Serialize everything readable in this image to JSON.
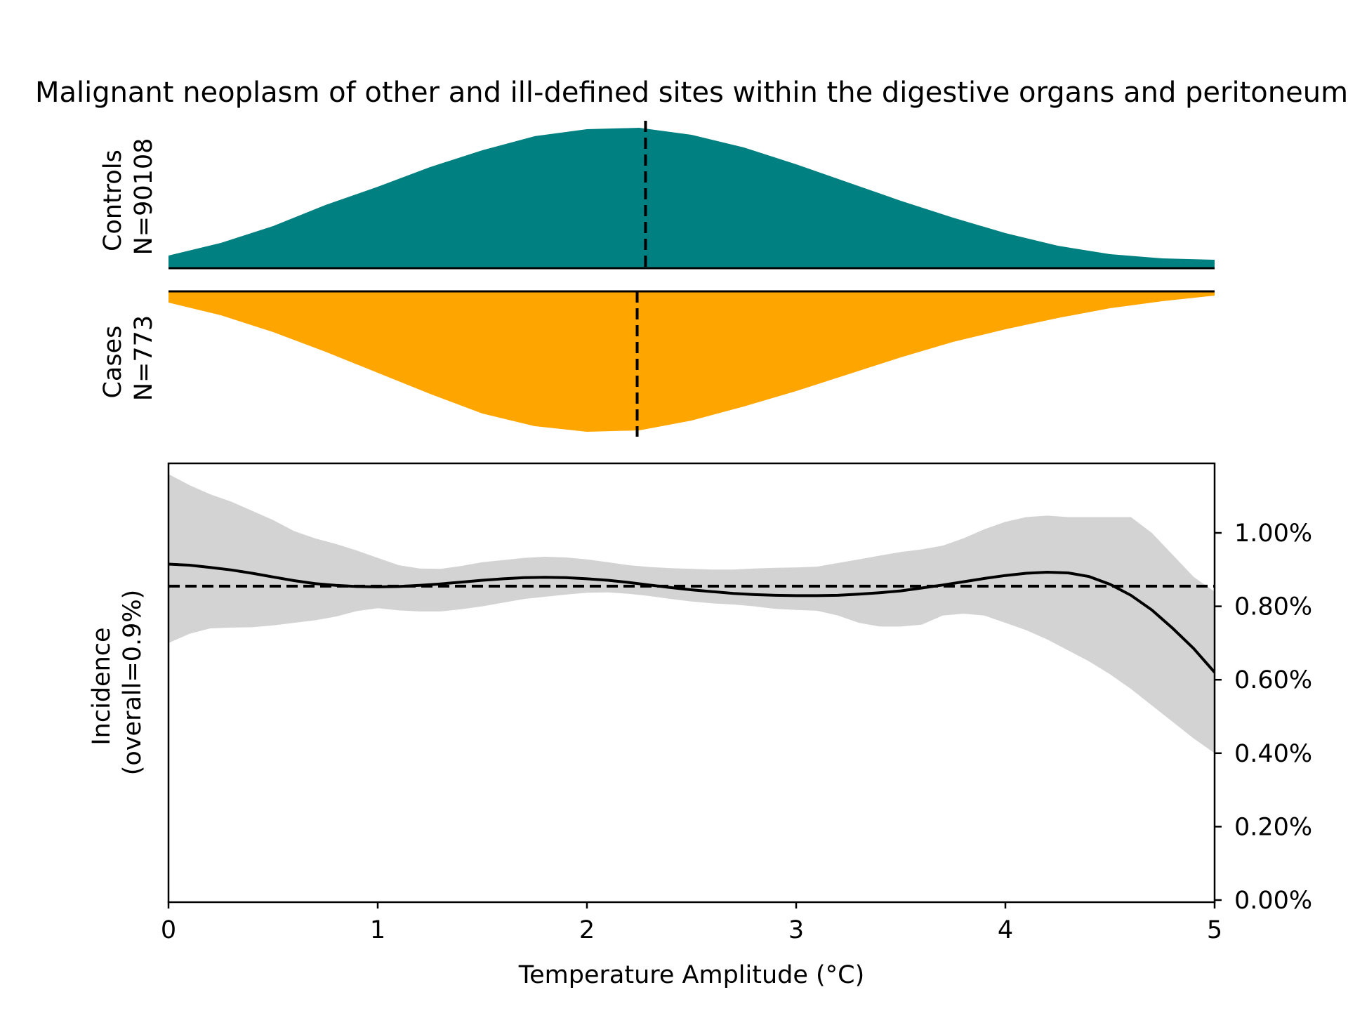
{
  "chart_data": {
    "type": "area",
    "title": "Malignant neoplasm of other and ill-defined sites within the digestive organs and peritoneum",
    "xlabel": "Temperature Amplitude (°C)",
    "xlim": [
      0,
      5
    ],
    "x_ticks": [
      "0",
      "1",
      "2",
      "3",
      "4",
      "5"
    ],
    "controls": {
      "label_line1": "Controls",
      "label_line2": "N=90108",
      "color": "#008080",
      "median": 2.28,
      "density_x": [
        0,
        0.25,
        0.5,
        0.75,
        1.0,
        1.25,
        1.5,
        1.75,
        2.0,
        2.25,
        2.5,
        2.75,
        3.0,
        3.25,
        3.5,
        3.75,
        4.0,
        4.25,
        4.5,
        4.75,
        5.0
      ],
      "density": [
        0.09,
        0.18,
        0.3,
        0.45,
        0.58,
        0.72,
        0.84,
        0.94,
        0.99,
        1.0,
        0.95,
        0.86,
        0.74,
        0.61,
        0.48,
        0.36,
        0.25,
        0.16,
        0.1,
        0.07,
        0.06
      ]
    },
    "cases": {
      "label_line1": "Cases",
      "label_line2": "N=773",
      "color": "#FFA500",
      "median": 2.24,
      "density_x": [
        0,
        0.25,
        0.5,
        0.75,
        1.0,
        1.25,
        1.5,
        1.75,
        2.0,
        2.25,
        2.5,
        2.75,
        3.0,
        3.25,
        3.5,
        3.75,
        4.0,
        4.25,
        4.5,
        4.75,
        5.0
      ],
      "density": [
        0.08,
        0.17,
        0.29,
        0.43,
        0.58,
        0.73,
        0.87,
        0.96,
        1.0,
        0.99,
        0.92,
        0.82,
        0.71,
        0.59,
        0.47,
        0.36,
        0.27,
        0.19,
        0.12,
        0.07,
        0.03
      ]
    },
    "incidence": {
      "ylabel_line1": "Incidence",
      "ylabel_line2": "(overall=0.9%)",
      "ylim": [
        0,
        1.2
      ],
      "y_ticks": [
        "0.00%",
        "0.20%",
        "0.40%",
        "0.60%",
        "0.80%",
        "1.00%"
      ],
      "overall": 0.855,
      "curve_color": "#000000",
      "band_color": "#d3d3d3",
      "x": [
        0,
        0.1,
        0.2,
        0.3,
        0.4,
        0.5,
        0.6,
        0.7,
        0.8,
        0.9,
        1.0,
        1.1,
        1.2,
        1.3,
        1.4,
        1.5,
        1.6,
        1.7,
        1.8,
        1.9,
        2.0,
        2.1,
        2.2,
        2.3,
        2.4,
        2.5,
        2.6,
        2.7,
        2.8,
        2.9,
        3.0,
        3.1,
        3.2,
        3.3,
        3.4,
        3.5,
        3.6,
        3.7,
        3.8,
        3.9,
        4.0,
        4.1,
        4.2,
        4.3,
        4.4,
        4.5,
        4.6,
        4.7,
        4.8,
        4.9,
        5.0
      ],
      "estimate": [
        0.915,
        0.912,
        0.906,
        0.899,
        0.89,
        0.88,
        0.87,
        0.862,
        0.857,
        0.854,
        0.853,
        0.854,
        0.857,
        0.861,
        0.866,
        0.871,
        0.875,
        0.878,
        0.879,
        0.878,
        0.875,
        0.871,
        0.865,
        0.858,
        0.851,
        0.845,
        0.84,
        0.835,
        0.832,
        0.83,
        0.829,
        0.829,
        0.83,
        0.833,
        0.837,
        0.842,
        0.85,
        0.858,
        0.867,
        0.876,
        0.884,
        0.89,
        0.893,
        0.891,
        0.881,
        0.86,
        0.83,
        0.79,
        0.74,
        0.685,
        0.62
      ],
      "upper": [
        1.16,
        1.13,
        1.105,
        1.085,
        1.06,
        1.035,
        1.005,
        0.985,
        0.97,
        0.952,
        0.932,
        0.912,
        0.903,
        0.902,
        0.91,
        0.92,
        0.926,
        0.932,
        0.935,
        0.933,
        0.928,
        0.92,
        0.912,
        0.907,
        0.904,
        0.902,
        0.9,
        0.9,
        0.903,
        0.905,
        0.906,
        0.908,
        0.918,
        0.928,
        0.938,
        0.948,
        0.955,
        0.965,
        0.985,
        1.01,
        1.03,
        1.043,
        1.047,
        1.043,
        1.043,
        1.043,
        1.043,
        1.0,
        0.94,
        0.88,
        0.84
      ],
      "lower": [
        0.7,
        0.725,
        0.74,
        0.742,
        0.743,
        0.748,
        0.755,
        0.762,
        0.772,
        0.787,
        0.795,
        0.789,
        0.786,
        0.786,
        0.792,
        0.8,
        0.81,
        0.82,
        0.826,
        0.832,
        0.837,
        0.838,
        0.834,
        0.828,
        0.82,
        0.813,
        0.808,
        0.805,
        0.8,
        0.793,
        0.79,
        0.788,
        0.775,
        0.755,
        0.745,
        0.745,
        0.75,
        0.775,
        0.78,
        0.775,
        0.755,
        0.735,
        0.71,
        0.68,
        0.65,
        0.615,
        0.575,
        0.53,
        0.485,
        0.44,
        0.4
      ]
    }
  }
}
